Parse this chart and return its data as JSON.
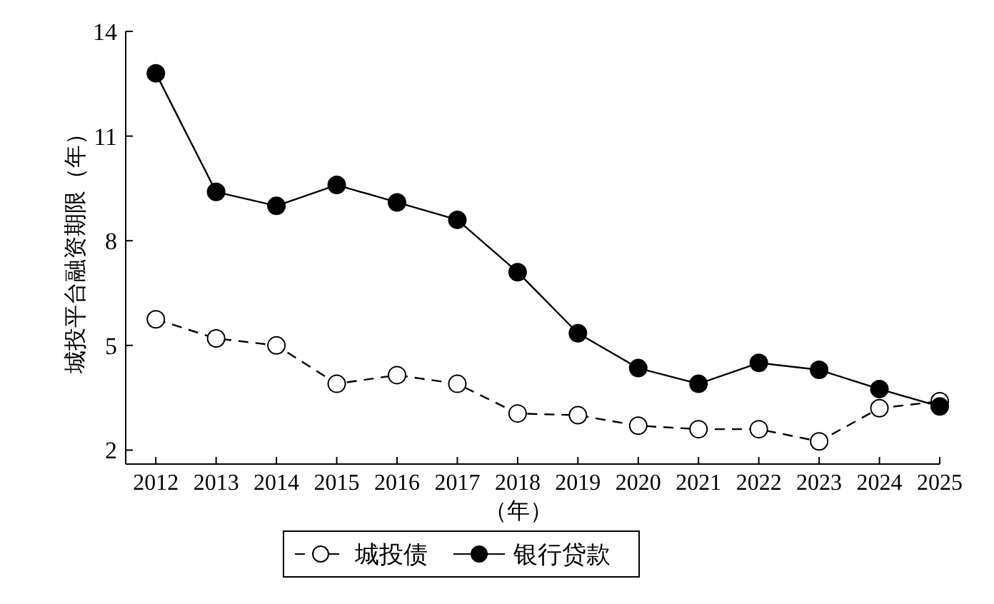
{
  "chart_data": {
    "type": "line",
    "xlabel": "（年）",
    "ylabel": "城投平台融资期限（年）",
    "x": [
      2012,
      2013,
      2014,
      2015,
      2016,
      2017,
      2018,
      2019,
      2020,
      2021,
      2022,
      2023,
      2024,
      2025
    ],
    "xlim": [
      2011.5,
      2025
    ],
    "xticks": [
      2012,
      2013,
      2014,
      2015,
      2016,
      2017,
      2018,
      2019,
      2020,
      2021,
      2022,
      2023,
      2024,
      2025
    ],
    "ylim": [
      1.6,
      14
    ],
    "yticks": [
      2,
      5,
      8,
      11,
      14
    ],
    "grid": false,
    "legend": "bottom",
    "series": [
      {
        "name": "城投债",
        "color": "#000000",
        "line_style": "dashed",
        "marker": "circle",
        "values": [
          5.75,
          5.2,
          5.0,
          3.9,
          4.15,
          3.9,
          3.05,
          3.0,
          2.7,
          2.6,
          2.6,
          2.25,
          3.2,
          3.4
        ]
      },
      {
        "name": "银行贷款",
        "color": "#000000",
        "line_style": "solid",
        "marker": "circle",
        "values": [
          12.8,
          9.4,
          9.0,
          9.6,
          9.1,
          8.6,
          7.1,
          5.35,
          4.35,
          3.9,
          4.5,
          4.3,
          3.75,
          3.25
        ]
      }
    ]
  }
}
